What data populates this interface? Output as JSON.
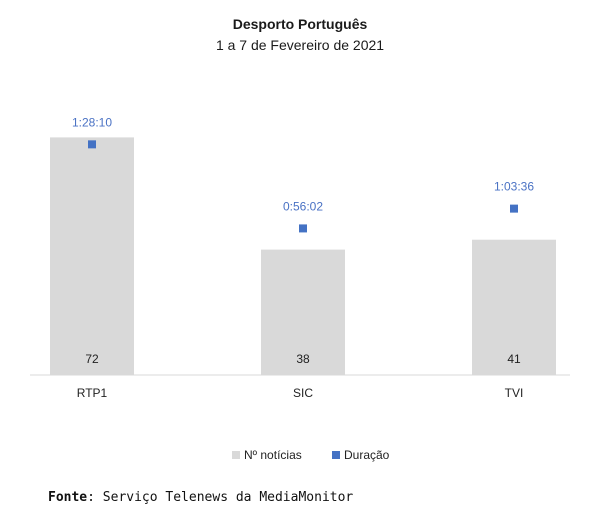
{
  "chart_data": {
    "type": "bar",
    "title": "Desporto Português",
    "subtitle": "1 a 7 de Fevereiro de 2021",
    "categories": [
      "RTP1",
      "SIC",
      "TVI"
    ],
    "series": [
      {
        "name": "Nº notícias",
        "type": "bar",
        "values": [
          72,
          38,
          41
        ],
        "color": "#d9d9d9"
      },
      {
        "name": "Duração",
        "type": "scatter",
        "values": [
          "1:28:10",
          "0:56:02",
          "1:03:36"
        ],
        "seconds": [
          5290,
          3362,
          3816
        ],
        "color": "#4472c4"
      }
    ],
    "legend_position": "bottom"
  },
  "source": {
    "label": "Fonte",
    "text": ": Serviço Telenews da MediaMonitor"
  }
}
